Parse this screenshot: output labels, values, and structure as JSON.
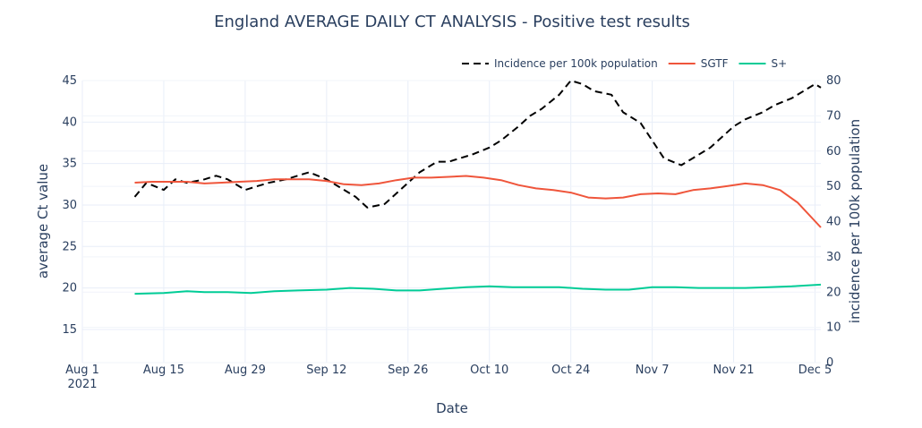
{
  "chart_data": {
    "type": "line",
    "title": "England AVERAGE DAILY CT ANALYSIS  - Positive test results",
    "xlabel": "Date",
    "ylabel_left": "average Ct value",
    "ylabel_right": "incidence per 100k population",
    "x_range": [
      "2021-08-01",
      "2021-12-06"
    ],
    "x_ticks": [
      {
        "date": "2021-08-01",
        "label": "Aug 1",
        "sublabel": "2021"
      },
      {
        "date": "2021-08-15",
        "label": "Aug 15"
      },
      {
        "date": "2021-08-29",
        "label": "Aug 29"
      },
      {
        "date": "2021-09-12",
        "label": "Sep 12"
      },
      {
        "date": "2021-09-26",
        "label": "Sep 26"
      },
      {
        "date": "2021-10-10",
        "label": "Oct 10"
      },
      {
        "date": "2021-10-24",
        "label": "Oct 24"
      },
      {
        "date": "2021-11-07",
        "label": "Nov 7"
      },
      {
        "date": "2021-11-21",
        "label": "Nov 21"
      },
      {
        "date": "2021-12-05",
        "label": "Dec 5"
      }
    ],
    "y_left": {
      "range": [
        11,
        45
      ],
      "ticks": [
        15,
        20,
        25,
        30,
        35,
        40,
        45
      ]
    },
    "y_right": {
      "range": [
        0,
        80
      ],
      "ticks": [
        0,
        10,
        20,
        30,
        40,
        50,
        60,
        70,
        80
      ]
    },
    "legend_position": "top-right",
    "grid": true,
    "series": [
      {
        "name": "Incidence per 100k population",
        "axis": "right",
        "color": "#000000",
        "dash": true,
        "x": [
          "2021-08-10",
          "2021-08-12",
          "2021-08-15",
          "2021-08-17",
          "2021-08-19",
          "2021-08-22",
          "2021-08-24",
          "2021-08-26",
          "2021-08-29",
          "2021-08-31",
          "2021-09-02",
          "2021-09-05",
          "2021-09-07",
          "2021-09-09",
          "2021-09-12",
          "2021-09-14",
          "2021-09-17",
          "2021-09-19",
          "2021-09-22",
          "2021-09-24",
          "2021-09-26",
          "2021-09-28",
          "2021-10-01",
          "2021-10-03",
          "2021-10-05",
          "2021-10-07",
          "2021-10-10",
          "2021-10-12",
          "2021-10-15",
          "2021-10-17",
          "2021-10-19",
          "2021-10-22",
          "2021-10-24",
          "2021-10-26",
          "2021-10-28",
          "2021-10-31",
          "2021-11-02",
          "2021-11-05",
          "2021-11-07",
          "2021-11-09",
          "2021-11-12",
          "2021-11-14",
          "2021-11-17",
          "2021-11-19",
          "2021-11-21",
          "2021-11-23",
          "2021-11-26",
          "2021-11-28",
          "2021-12-01",
          "2021-12-03",
          "2021-12-05",
          "2021-12-06"
        ],
        "values": [
          47,
          51,
          49,
          52,
          51,
          52,
          53,
          52,
          49,
          50,
          51,
          52,
          53,
          54,
          52,
          50,
          47,
          44,
          45,
          48,
          51,
          54,
          57,
          57,
          58,
          59,
          61,
          63,
          67,
          70,
          72,
          76,
          80,
          79,
          77,
          76,
          71,
          68,
          63,
          58,
          56,
          58,
          61,
          64,
          67,
          69,
          71,
          73,
          75,
          77,
          79,
          78
        ]
      },
      {
        "name": "SGTF",
        "axis": "left",
        "color": "#ef553b",
        "x": [
          "2021-08-10",
          "2021-08-13",
          "2021-08-16",
          "2021-08-19",
          "2021-08-22",
          "2021-08-25",
          "2021-08-28",
          "2021-08-31",
          "2021-09-03",
          "2021-09-06",
          "2021-09-09",
          "2021-09-12",
          "2021-09-15",
          "2021-09-18",
          "2021-09-21",
          "2021-09-24",
          "2021-09-27",
          "2021-09-30",
          "2021-10-03",
          "2021-10-06",
          "2021-10-09",
          "2021-10-12",
          "2021-10-15",
          "2021-10-18",
          "2021-10-21",
          "2021-10-24",
          "2021-10-27",
          "2021-10-30",
          "2021-11-02",
          "2021-11-05",
          "2021-11-08",
          "2021-11-11",
          "2021-11-14",
          "2021-11-17",
          "2021-11-20",
          "2021-11-23",
          "2021-11-26",
          "2021-11-29",
          "2021-12-02",
          "2021-12-06"
        ],
        "values": [
          32.7,
          32.8,
          32.8,
          32.8,
          32.6,
          32.7,
          32.8,
          32.9,
          33.1,
          33.1,
          33.1,
          32.9,
          32.5,
          32.4,
          32.6,
          33.0,
          33.3,
          33.3,
          33.4,
          33.5,
          33.3,
          33.0,
          32.4,
          32.0,
          31.8,
          31.5,
          30.9,
          30.8,
          30.9,
          31.3,
          31.4,
          31.3,
          31.8,
          32.0,
          32.3,
          32.6,
          32.4,
          31.8,
          30.3,
          27.3
        ]
      },
      {
        "name": "S+",
        "axis": "left",
        "color": "#00cc96",
        "x": [
          "2021-08-10",
          "2021-08-15",
          "2021-08-19",
          "2021-08-22",
          "2021-08-26",
          "2021-08-30",
          "2021-09-03",
          "2021-09-07",
          "2021-09-12",
          "2021-09-16",
          "2021-09-20",
          "2021-09-24",
          "2021-09-28",
          "2021-10-02",
          "2021-10-06",
          "2021-10-10",
          "2021-10-14",
          "2021-10-18",
          "2021-10-22",
          "2021-10-26",
          "2021-10-30",
          "2021-11-03",
          "2021-11-07",
          "2021-11-11",
          "2021-11-15",
          "2021-11-19",
          "2021-11-23",
          "2021-11-27",
          "2021-12-01",
          "2021-12-06"
        ],
        "values": [
          19.3,
          19.4,
          19.6,
          19.5,
          19.5,
          19.4,
          19.6,
          19.7,
          19.8,
          20.0,
          19.9,
          19.7,
          19.7,
          19.9,
          20.1,
          20.2,
          20.1,
          20.1,
          20.1,
          19.9,
          19.8,
          19.8,
          20.1,
          20.1,
          20.0,
          20.0,
          20.0,
          20.1,
          20.2,
          20.4
        ]
      }
    ]
  }
}
